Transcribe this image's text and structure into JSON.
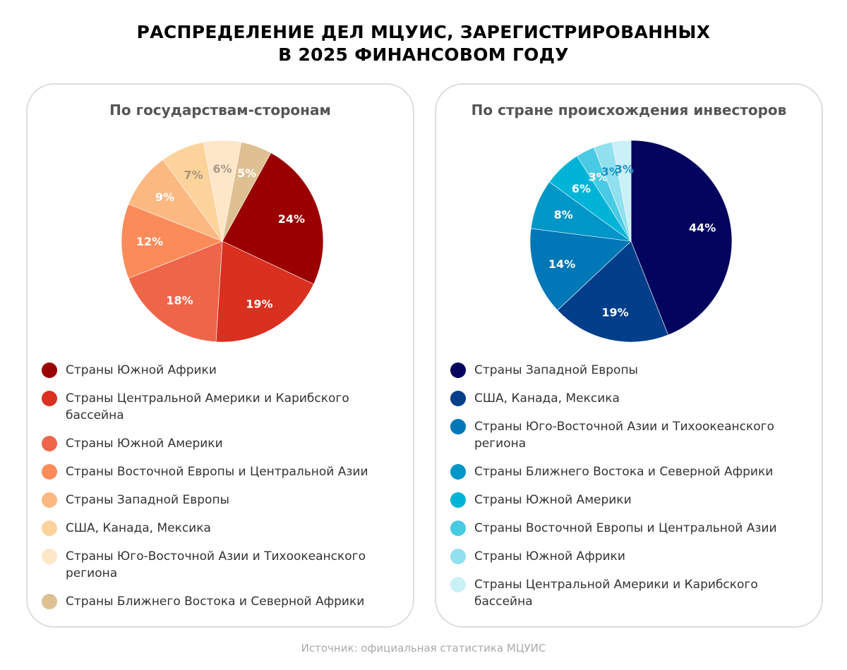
{
  "title_line1": "РАСПРЕДЕЛЕНИЕ ДЕЛ МЦУИС, ЗАРЕГИСТРИРОВАННЫХ",
  "title_line2": "В 2025 ФИНАНСОВОМ ГОДУ",
  "source": "Источник: официальная статистика МЦУИС",
  "chart_data": [
    {
      "type": "pie",
      "title": "По государствам-сторонам",
      "categories": [
        "Страны Южной Африки",
        "Страны Центральной Америки и Карибского бассейна",
        "Страны Южной Америки",
        "Страны Восточной Европы и Центральной Азии",
        "Страны Западной Европы",
        "США, Канада, Мексика",
        "Страны Юго-Восточной Азии и Тихоокеанского региона",
        "Страны Ближнего Востока и Северной Африки"
      ],
      "values": [
        24,
        19,
        18,
        12,
        9,
        7,
        6,
        5
      ],
      "labels": [
        "24%",
        "19%",
        "18%",
        "12%",
        "9%",
        "7%",
        "6%",
        "5%"
      ],
      "colors": [
        "#9b0000",
        "#d93020",
        "#ee654a",
        "#fb8c5a",
        "#fcb881",
        "#fdd39c",
        "#fee6c8",
        "#dfc092"
      ],
      "label_colors": [
        "#ffffff",
        "#ffffff",
        "#ffffff",
        "#ffffff",
        "#ffffff",
        "#a89478",
        "#a89a8a",
        "#ffffff"
      ],
      "legend": "bottom"
    },
    {
      "type": "pie",
      "title": "По стране происхождения инвесторов",
      "categories": [
        "Страны Западной Европы",
        "США, Канада, Мексика",
        "Страны Юго-Восточной Азии и Тихоокеанского региона",
        "Страны Ближнего Востока и Северной Африки",
        "Страны Южной Америки",
        "Страны Восточной Европы и Центральной Азии",
        "Страны Южной Африки",
        "Страны Центральной Америки и Карибского бассейна"
      ],
      "values": [
        44,
        19,
        14,
        8,
        6,
        3,
        3,
        3
      ],
      "labels": [
        "44%",
        "19%",
        "14%",
        "8%",
        "6%",
        "3%",
        "3%",
        "3%"
      ],
      "colors": [
        "#03045e",
        "#023e8a",
        "#0077b6",
        "#0096c7",
        "#00b4d8",
        "#48cae4",
        "#90e0ef",
        "#caf0f8"
      ],
      "label_colors": [
        "#ffffff",
        "#ffffff",
        "#ffffff",
        "#ffffff",
        "#ffffff",
        "#ffffff",
        "#1a8fc4",
        "#1a8fc4"
      ],
      "legend": "bottom"
    }
  ]
}
